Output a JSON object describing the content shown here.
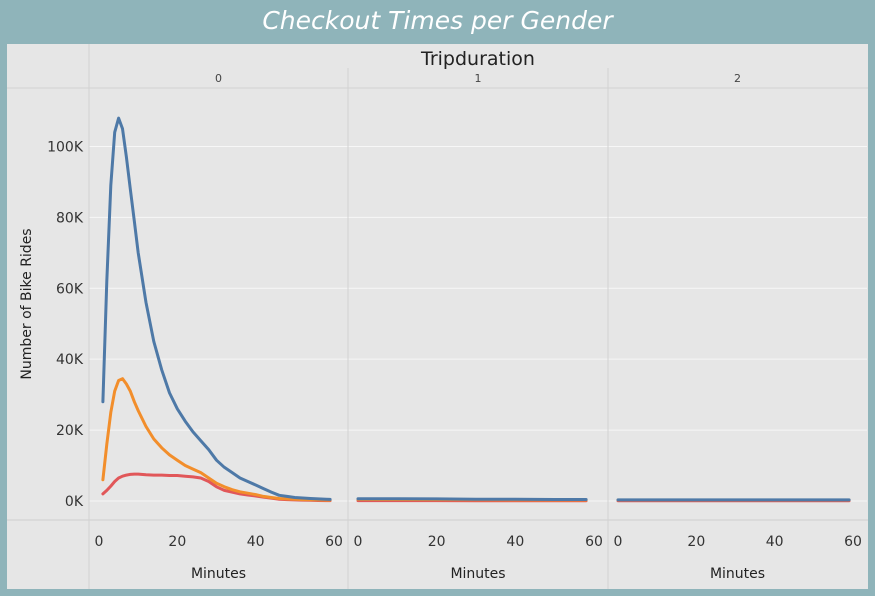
{
  "chart_data": {
    "type": "line",
    "title": "Checkout Times per Gender",
    "column_header": "Tripduration",
    "ylabel": "Number of Bike Rides",
    "xlabel": "Minutes",
    "ylim": [
      0,
      110000
    ],
    "yticks": [
      0,
      20000,
      40000,
      60000,
      80000,
      100000
    ],
    "ytick_labels": [
      "0K",
      "20K",
      "40K",
      "60K",
      "80K",
      "100K"
    ],
    "grid": true,
    "legend": "none",
    "panels": [
      {
        "label": "0",
        "xlim": [
          0,
          60
        ],
        "xticks": [
          0,
          20,
          40,
          60
        ],
        "series": [
          {
            "color": "#4e79a7",
            "x": [
              1,
              2,
              3,
              4,
              5,
              6,
              7,
              8,
              9,
              10,
              12,
              14,
              16,
              18,
              20,
              22,
              24,
              26,
              28,
              30,
              32,
              34,
              36,
              38,
              40,
              42,
              44,
              46,
              48,
              50,
              52,
              54,
              56,
              58,
              59
            ],
            "y": [
              28000,
              62000,
              89000,
              104000,
              108000,
              105000,
              97000,
              88000,
              79000,
              70000,
              56000,
              45000,
              37000,
              30500,
              26000,
              22500,
              19500,
              17000,
              14500,
              11500,
              9500,
              8000,
              6500,
              5500,
              4500,
              3500,
              2500,
              1600,
              1300,
              1000,
              850,
              700,
              600,
              500,
              450
            ]
          },
          {
            "color": "#f28e2b",
            "x": [
              1,
              2,
              3,
              4,
              5,
              6,
              7,
              8,
              9,
              10,
              12,
              14,
              16,
              18,
              20,
              22,
              24,
              26,
              28,
              30,
              32,
              34,
              36,
              38,
              40,
              42,
              44,
              46,
              48,
              50,
              52,
              54,
              56,
              58,
              59
            ],
            "y": [
              6000,
              16000,
              25000,
              31000,
              34000,
              34500,
              33000,
              31000,
              28000,
              25500,
              21000,
              17500,
              15000,
              13000,
              11500,
              10000,
              9000,
              8000,
              6500,
              5000,
              4000,
              3200,
              2600,
              2200,
              1800,
              1300,
              1000,
              700,
              600,
              500,
              400,
              350,
              300,
              250,
              250
            ]
          },
          {
            "color": "#e15759",
            "x": [
              1,
              2,
              3,
              4,
              5,
              6,
              7,
              8,
              9,
              10,
              12,
              14,
              16,
              18,
              20,
              22,
              24,
              26,
              28,
              30,
              32,
              34,
              36,
              38,
              40,
              42,
              44,
              46,
              48,
              50,
              52,
              54,
              56,
              58,
              59
            ],
            "y": [
              2000,
              3000,
              4200,
              5500,
              6500,
              7000,
              7300,
              7500,
              7600,
              7600,
              7400,
              7300,
              7300,
              7200,
              7200,
              7000,
              6800,
              6500,
              5500,
              4000,
              3000,
              2500,
              2000,
              1700,
              1400,
              1100,
              800,
              500,
              400,
              300,
              250,
              200,
              150,
              120,
              100
            ]
          }
        ]
      },
      {
        "label": "1",
        "xlim": [
          0,
          60
        ],
        "xticks": [
          0,
          20,
          40,
          60
        ],
        "series": [
          {
            "color": "#4e79a7",
            "x": [
              0,
              10,
              20,
              30,
              40,
              50,
              58
            ],
            "y": [
              650,
              620,
              580,
              520,
              470,
              430,
              420
            ]
          },
          {
            "color": "#f28e2b",
            "x": [
              0,
              10,
              20,
              30,
              40,
              50,
              58
            ],
            "y": [
              450,
              430,
              390,
              340,
              310,
              290,
              280
            ]
          },
          {
            "color": "#e15759",
            "x": [
              0,
              10,
              20,
              30,
              40,
              50,
              58
            ],
            "y": [
              120,
              110,
              100,
              90,
              80,
              70,
              60
            ]
          }
        ]
      },
      {
        "label": "2",
        "xlim": [
          0,
          60
        ],
        "xticks": [
          0,
          20,
          40,
          60
        ],
        "series": [
          {
            "color": "#4e79a7",
            "x": [
              0,
              10,
              20,
              30,
              40,
              50,
              59
            ],
            "y": [
              300,
              300,
              300,
              300,
              300,
              300,
              300
            ]
          },
          {
            "color": "#f28e2b",
            "x": [
              0,
              10,
              20,
              30,
              40,
              50,
              59
            ],
            "y": [
              280,
              280,
              280,
              280,
              280,
              280,
              280
            ]
          },
          {
            "color": "#e15759",
            "x": [
              0,
              10,
              20,
              30,
              40,
              50,
              59
            ],
            "y": [
              60,
              60,
              60,
              60,
              60,
              60,
              60
            ]
          }
        ]
      }
    ]
  }
}
